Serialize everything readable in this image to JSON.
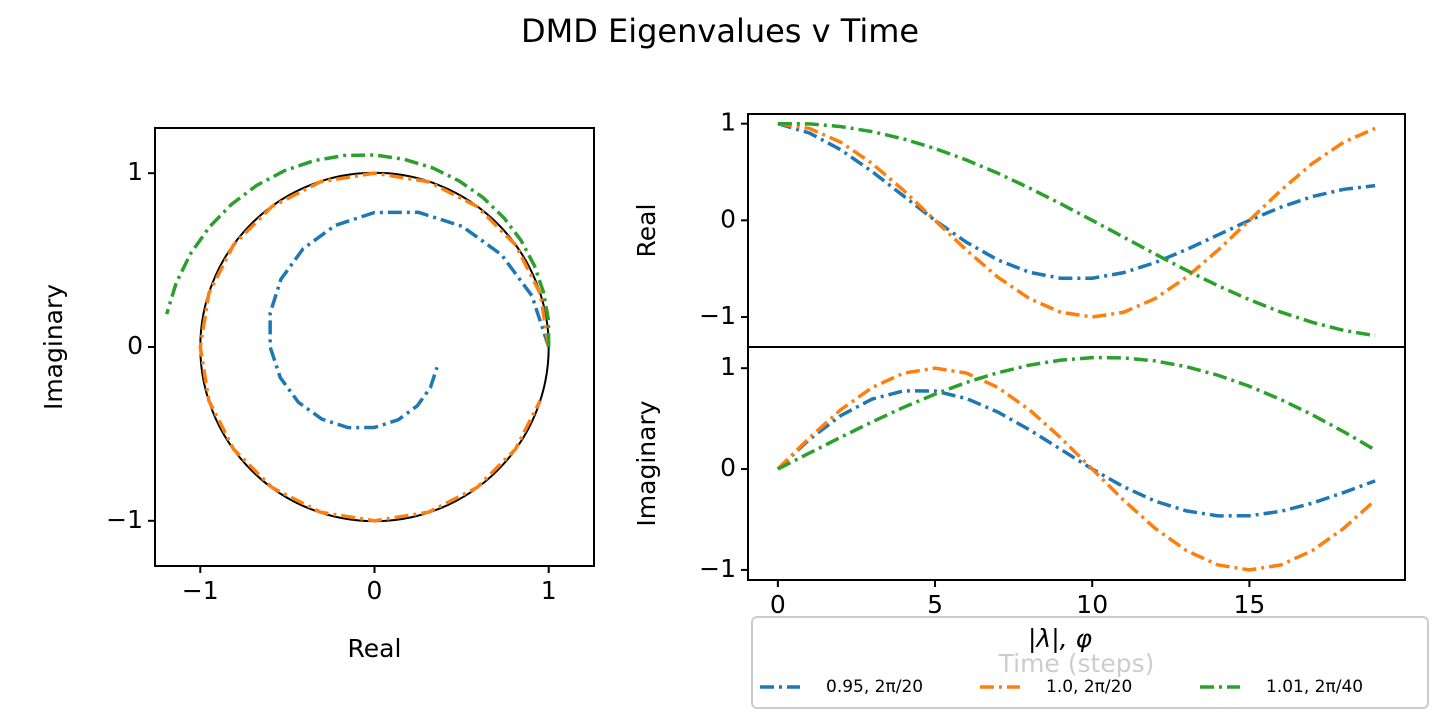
{
  "title": "DMD Eigenvalues v Time",
  "legend": {
    "title": "|λ|, φ",
    "location": "lower right"
  },
  "chart_data": [
    {
      "type": "line",
      "xlabel": "Real",
      "ylabel": "Imaginary",
      "xlim": [
        -1.26,
        1.26
      ],
      "ylim": [
        -1.26,
        1.26
      ],
      "xticks": [
        {
          "value": -1,
          "label": "−1"
        },
        0,
        1
      ],
      "yticks": [
        {
          "value": -1,
          "label": "−1"
        },
        0,
        1
      ],
      "series": [
        {
          "name": "0.95, 2π/20",
          "color": "#1f77b4",
          "x": [
            1,
            0.904,
            0.73,
            0.504,
            0.252,
            0,
            -0.227,
            -0.41,
            -0.537,
            -0.599,
            -0.599,
            -0.541,
            -0.437,
            -0.302,
            -0.151,
            0,
            0.136,
            0.246,
            0.321,
            0.359
          ],
          "values": [
            0,
            0.294,
            0.53,
            0.694,
            0.775,
            0.774,
            0.699,
            0.565,
            0.39,
            0.195,
            0,
            -0.176,
            -0.318,
            -0.415,
            -0.464,
            -0.463,
            -0.419,
            -0.338,
            -0.233,
            -0.117
          ]
        },
        {
          "name": "1.0, 2π/20",
          "color": "#ff7f0e",
          "x": [
            1,
            0.951,
            0.809,
            0.588,
            0.309,
            0,
            -0.309,
            -0.588,
            -0.809,
            -0.951,
            -1,
            -0.951,
            -0.809,
            -0.588,
            -0.309,
            0,
            0.309,
            0.588,
            0.809,
            0.951
          ],
          "values": [
            0,
            0.309,
            0.588,
            0.809,
            0.951,
            1,
            0.951,
            0.809,
            0.588,
            0.309,
            0,
            -0.309,
            -0.588,
            -0.809,
            -0.951,
            -1,
            -0.951,
            -0.809,
            -0.588,
            -0.309
          ]
        },
        {
          "name": "1.01, 2π/40",
          "color": "#2ca02c",
          "x": [
            1,
            0.998,
            0.97,
            0.918,
            0.842,
            0.743,
            0.624,
            0.487,
            0.335,
            0.171,
            0,
            -0.174,
            -0.348,
            -0.517,
            -0.676,
            -0.821,
            -0.949,
            -1.055,
            -1.138,
            -1.193
          ],
          "values": [
            0,
            0.158,
            0.315,
            0.468,
            0.612,
            0.743,
            0.859,
            0.955,
            1.03,
            1.08,
            1.105,
            1.102,
            1.072,
            1.014,
            0.93,
            0.821,
            0.689,
            0.538,
            0.37,
            0.189
          ]
        }
      ]
    },
    {
      "type": "line",
      "ylabel": "Real",
      "x": [
        0,
        1,
        2,
        3,
        4,
        5,
        6,
        7,
        8,
        9,
        10,
        11,
        12,
        13,
        14,
        15,
        16,
        17,
        18,
        19
      ],
      "xlim": [
        -0.95,
        19.95
      ],
      "ylim": [
        -1.31,
        1.1
      ],
      "yticks": [
        {
          "value": -1,
          "label": "−1"
        },
        0,
        1
      ],
      "series": [
        {
          "color": "#1f77b4",
          "values": [
            1,
            0.904,
            0.73,
            0.504,
            0.252,
            0,
            -0.227,
            -0.41,
            -0.537,
            -0.599,
            -0.599,
            -0.541,
            -0.437,
            -0.302,
            -0.151,
            0,
            0.136,
            0.246,
            0.321,
            0.359
          ]
        },
        {
          "color": "#ff7f0e",
          "values": [
            1,
            0.951,
            0.809,
            0.588,
            0.309,
            0,
            -0.309,
            -0.588,
            -0.809,
            -0.951,
            -1,
            -0.951,
            -0.809,
            -0.588,
            -0.309,
            0,
            0.309,
            0.588,
            0.809,
            0.951
          ]
        },
        {
          "color": "#2ca02c",
          "values": [
            1,
            0.998,
            0.97,
            0.918,
            0.842,
            0.743,
            0.624,
            0.487,
            0.335,
            0.171,
            0,
            -0.174,
            -0.348,
            -0.517,
            -0.676,
            -0.821,
            -0.949,
            -1.055,
            -1.138,
            -1.193
          ]
        }
      ]
    },
    {
      "type": "line",
      "xlabel": "Time (steps)",
      "ylabel": "Imaginary",
      "x": [
        0,
        1,
        2,
        3,
        4,
        5,
        6,
        7,
        8,
        9,
        10,
        11,
        12,
        13,
        14,
        15,
        16,
        17,
        18,
        19
      ],
      "xlim": [
        -0.95,
        19.95
      ],
      "ylim": [
        -1.1,
        1.21
      ],
      "xticks": [
        0,
        5,
        10,
        15
      ],
      "yticks": [
        {
          "value": -1,
          "label": "−1"
        },
        0,
        1
      ],
      "series": [
        {
          "color": "#1f77b4",
          "values": [
            0,
            0.294,
            0.53,
            0.694,
            0.775,
            0.774,
            0.699,
            0.565,
            0.39,
            0.195,
            0,
            -0.176,
            -0.318,
            -0.415,
            -0.464,
            -0.463,
            -0.419,
            -0.338,
            -0.233,
            -0.117
          ]
        },
        {
          "color": "#ff7f0e",
          "values": [
            0,
            0.309,
            0.588,
            0.809,
            0.951,
            1,
            0.951,
            0.809,
            0.588,
            0.309,
            0,
            -0.309,
            -0.588,
            -0.809,
            -0.951,
            -1,
            -0.951,
            -0.809,
            -0.588,
            -0.309
          ]
        },
        {
          "color": "#2ca02c",
          "values": [
            0,
            0.158,
            0.315,
            0.468,
            0.612,
            0.743,
            0.859,
            0.955,
            1.03,
            1.08,
            1.105,
            1.102,
            1.072,
            1.014,
            0.93,
            0.821,
            0.689,
            0.538,
            0.37,
            0.189
          ]
        }
      ]
    }
  ]
}
